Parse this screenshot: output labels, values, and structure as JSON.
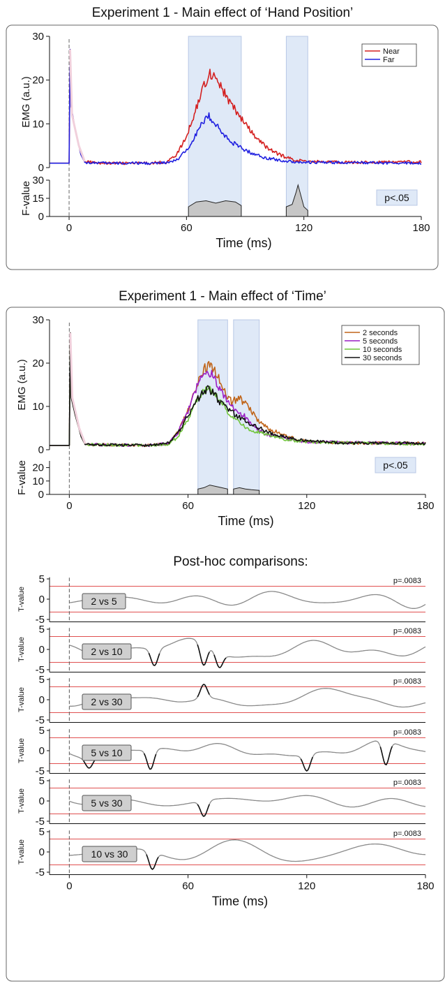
{
  "colors": {
    "near": "#d42020",
    "far": "#2020e0",
    "s2": "#c0651a",
    "s5": "#9a1fc4",
    "s10": "#6fc53a",
    "s30": "#111111",
    "shade": "#dfe9f7",
    "fill": "#c6c6c6",
    "thr": "#e05050"
  },
  "chart_data": [
    {
      "type": "line",
      "title": "Experiment 1 - Main effect of ‘Hand Position’",
      "xlabel": "Time (ms)",
      "ylabel": "EMG (a.u.)",
      "ylabel2": "F-value",
      "xlim": [
        -10,
        180
      ],
      "ylim": [
        0,
        30
      ],
      "ylim2": [
        0,
        30
      ],
      "xticks": [
        "0",
        "60",
        "120",
        "180"
      ],
      "yticks": [
        "0",
        "10",
        "20",
        "30"
      ],
      "yticks2": [
        "0",
        "15",
        "30"
      ],
      "legend": {
        "position": "top-right",
        "entries": [
          "Near",
          "Far"
        ]
      },
      "annotation": "p<.05",
      "significant_windows": [
        [
          61,
          88
        ],
        [
          111,
          122
        ]
      ],
      "series": [
        {
          "name": "Near",
          "color_key": "near",
          "points": [
            [
              -10,
              1
            ],
            [
              0,
              1
            ],
            [
              0.5,
              27
            ],
            [
              1,
              14
            ],
            [
              3,
              9
            ],
            [
              6,
              3
            ],
            [
              8,
              1.3
            ],
            [
              20,
              1
            ],
            [
              40,
              1
            ],
            [
              50,
              1.3
            ],
            [
              55,
              3
            ],
            [
              60,
              7
            ],
            [
              63,
              11
            ],
            [
              66,
              15
            ],
            [
              69,
              19
            ],
            [
              72,
              21.5
            ],
            [
              75,
              21
            ],
            [
              78,
              18
            ],
            [
              82,
              15
            ],
            [
              86,
              12.5
            ],
            [
              90,
              10
            ],
            [
              95,
              7
            ],
            [
              100,
              5
            ],
            [
              105,
              3.5
            ],
            [
              110,
              2.5
            ],
            [
              115,
              1.8
            ],
            [
              120,
              1.5
            ],
            [
              140,
              1.2
            ],
            [
              180,
              1.3
            ]
          ]
        },
        {
          "name": "Far",
          "color_key": "far",
          "points": [
            [
              -10,
              1
            ],
            [
              0,
              1
            ],
            [
              0.5,
              27
            ],
            [
              1,
              14
            ],
            [
              3,
              9
            ],
            [
              6,
              3
            ],
            [
              8,
              1.2
            ],
            [
              20,
              1
            ],
            [
              45,
              1
            ],
            [
              52,
              1.2
            ],
            [
              56,
              2
            ],
            [
              60,
              4
            ],
            [
              64,
              7
            ],
            [
              68,
              10
            ],
            [
              71,
              12
            ],
            [
              74,
              10.5
            ],
            [
              78,
              8
            ],
            [
              82,
              6.2
            ],
            [
              86,
              5
            ],
            [
              90,
              4
            ],
            [
              95,
              3
            ],
            [
              100,
              2.3
            ],
            [
              110,
              1.5
            ],
            [
              120,
              1.2
            ],
            [
              180,
              1
            ]
          ]
        }
      ],
      "f_values": [
        [
          -10,
          0
        ],
        [
          61,
          0
        ],
        [
          61,
          8
        ],
        [
          65,
          12
        ],
        [
          70,
          13
        ],
        [
          75,
          11
        ],
        [
          80,
          13
        ],
        [
          85,
          12
        ],
        [
          88,
          9
        ],
        [
          88,
          0
        ],
        [
          111,
          0
        ],
        [
          111,
          8
        ],
        [
          114,
          10
        ],
        [
          116,
          20
        ],
        [
          117,
          26
        ],
        [
          118,
          20
        ],
        [
          120,
          8
        ],
        [
          122,
          5
        ],
        [
          122,
          0
        ],
        [
          180,
          0
        ]
      ]
    },
    {
      "type": "line",
      "title": "Experiment 1 - Main effect of ‘Time’",
      "xlabel": "Time (ms)",
      "ylabel": "EMG (a.u.)",
      "ylabel2": "F-value",
      "xlim": [
        -10,
        180
      ],
      "ylim": [
        0,
        30
      ],
      "ylim2": [
        0,
        25
      ],
      "xticks": [
        "0",
        "60",
        "120",
        "180"
      ],
      "yticks": [
        "0",
        "10",
        "20",
        "30"
      ],
      "yticks2": [
        "0",
        "10",
        "20"
      ],
      "legend": {
        "position": "top-right",
        "entries": [
          "2 seconds",
          "5 seconds",
          "10 seconds",
          "30 seconds"
        ]
      },
      "annotation": "p<.05",
      "significant_windows": [
        [
          65,
          80
        ],
        [
          83,
          96
        ]
      ],
      "series": [
        {
          "name": "2 seconds",
          "color_key": "s2",
          "points": [
            [
              -10,
              1
            ],
            [
              0,
              1
            ],
            [
              0.5,
              27
            ],
            [
              1,
              12
            ],
            [
              3,
              8
            ],
            [
              6,
              3
            ],
            [
              8,
              1.2
            ],
            [
              40,
              1
            ],
            [
              50,
              1.5
            ],
            [
              55,
              4
            ],
            [
              60,
              9
            ],
            [
              64,
              14
            ],
            [
              67,
              18
            ],
            [
              70,
              19.5
            ],
            [
              73,
              19
            ],
            [
              76,
              16
            ],
            [
              79,
              13
            ],
            [
              82,
              11
            ],
            [
              86,
              12
            ],
            [
              90,
              10
            ],
            [
              95,
              7
            ],
            [
              100,
              5
            ],
            [
              110,
              3
            ],
            [
              120,
              2
            ],
            [
              140,
              1.5
            ],
            [
              180,
              1.5
            ]
          ]
        },
        {
          "name": "5 seconds",
          "color_key": "s5",
          "points": [
            [
              -10,
              1
            ],
            [
              0,
              1
            ],
            [
              0.5,
              27
            ],
            [
              1,
              12
            ],
            [
              3,
              8
            ],
            [
              6,
              3
            ],
            [
              8,
              1.2
            ],
            [
              40,
              1
            ],
            [
              50,
              1.5
            ],
            [
              55,
              4
            ],
            [
              60,
              9
            ],
            [
              64,
              14
            ],
            [
              67,
              17
            ],
            [
              70,
              18
            ],
            [
              73,
              17
            ],
            [
              76,
              14
            ],
            [
              80,
              11
            ],
            [
              84,
              9
            ],
            [
              88,
              8
            ],
            [
              92,
              6
            ],
            [
              96,
              4.5
            ],
            [
              100,
              3.5
            ],
            [
              110,
              2.5
            ],
            [
              120,
              1.8
            ],
            [
              180,
              1.4
            ]
          ]
        },
        {
          "name": "10 seconds",
          "color_key": "s10",
          "points": [
            [
              -10,
              1
            ],
            [
              0,
              1
            ],
            [
              0.5,
              27
            ],
            [
              1,
              12
            ],
            [
              3,
              8
            ],
            [
              6,
              3
            ],
            [
              8,
              1.2
            ],
            [
              40,
              1
            ],
            [
              50,
              1.3
            ],
            [
              55,
              3
            ],
            [
              60,
              7
            ],
            [
              64,
              11
            ],
            [
              67,
              13
            ],
            [
              70,
              14.5
            ],
            [
              73,
              13
            ],
            [
              76,
              11.5
            ],
            [
              80,
              9
            ],
            [
              84,
              7
            ],
            [
              88,
              5.5
            ],
            [
              92,
              4.5
            ],
            [
              100,
              3.5
            ],
            [
              110,
              2.3
            ],
            [
              120,
              1.8
            ],
            [
              180,
              1.3
            ]
          ]
        },
        {
          "name": "30 seconds",
          "color_key": "s30",
          "points": [
            [
              -10,
              1
            ],
            [
              0,
              1
            ],
            [
              0.5,
              27
            ],
            [
              1,
              12
            ],
            [
              3,
              8
            ],
            [
              6,
              3
            ],
            [
              8,
              1.2
            ],
            [
              40,
              1
            ],
            [
              50,
              1.5
            ],
            [
              55,
              4
            ],
            [
              60,
              8
            ],
            [
              64,
              11
            ],
            [
              67,
              13
            ],
            [
              70,
              14
            ],
            [
              73,
              13
            ],
            [
              76,
              11
            ],
            [
              80,
              9.5
            ],
            [
              84,
              8
            ],
            [
              88,
              7
            ],
            [
              92,
              6
            ],
            [
              96,
              5
            ],
            [
              100,
              4
            ],
            [
              110,
              2.8
            ],
            [
              120,
              2
            ],
            [
              140,
              1.5
            ],
            [
              180,
              1.5
            ]
          ]
        }
      ],
      "f_values": [
        [
          -10,
          0
        ],
        [
          65,
          0
        ],
        [
          65,
          4
        ],
        [
          68,
          5
        ],
        [
          71,
          7
        ],
        [
          74,
          6
        ],
        [
          77,
          5
        ],
        [
          80,
          4
        ],
        [
          80,
          0
        ],
        [
          83,
          0
        ],
        [
          83,
          4
        ],
        [
          86,
          5
        ],
        [
          89,
          4
        ],
        [
          92,
          3.5
        ],
        [
          96,
          3
        ],
        [
          96,
          0
        ],
        [
          180,
          0
        ]
      ]
    }
  ],
  "posthoc": {
    "title": "Post-hoc comparisons:",
    "ylabel": "T-value",
    "yticks": [
      "5",
      "0",
      "-5"
    ],
    "threshold_label": "p=.0083",
    "xticks": [
      "0",
      "60",
      "120",
      "180"
    ],
    "xlabel": "Time (ms)",
    "xlim": [
      -10,
      180
    ],
    "threshold": 3.2,
    "comparisons": [
      {
        "label": "2 vs 5",
        "seed": 11
      },
      {
        "label": "2 vs 10",
        "seed": 23,
        "dips": [
          [
            43,
            -4.0
          ],
          [
            68,
            -3.9
          ],
          [
            76,
            -4.5
          ]
        ]
      },
      {
        "label": "2 vs 30",
        "seed": 37,
        "dips": [
          [
            68,
            3.8
          ]
        ]
      },
      {
        "label": "5 vs 10",
        "seed": 41,
        "dips": [
          [
            10,
            -4.3
          ],
          [
            41,
            -4.6
          ],
          [
            120,
            -5.0
          ],
          [
            160,
            -3.5
          ]
        ]
      },
      {
        "label": "5 vs 30",
        "seed": 53,
        "dips": [
          [
            68,
            -3.8
          ]
        ]
      },
      {
        "label": "10 vs 30",
        "seed": 67,
        "dips": [
          [
            42,
            -4.3
          ]
        ]
      }
    ]
  }
}
